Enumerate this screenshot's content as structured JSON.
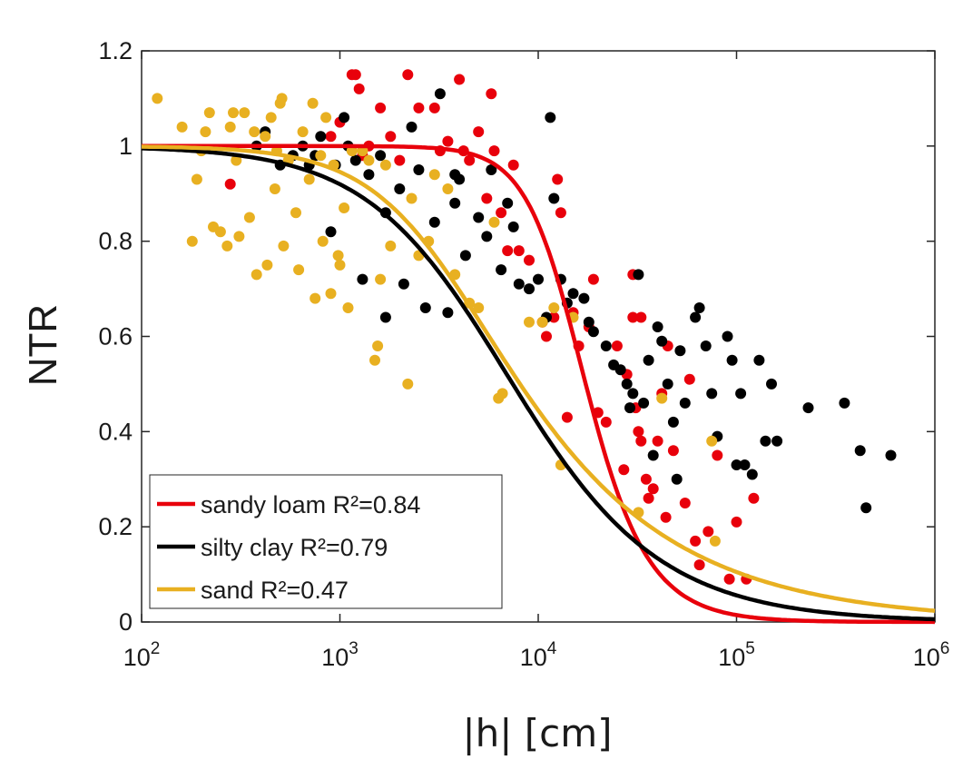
{
  "chart_data": {
    "type": "scatter",
    "xlabel": "|h| [cm]",
    "ylabel": "NTR",
    "xscale": "log",
    "xlim": [
      100,
      1000000
    ],
    "ylim": [
      0,
      1.2
    ],
    "x_ticks": [
      {
        "value": 100,
        "base": "10",
        "exp": "2"
      },
      {
        "value": 1000,
        "base": "10",
        "exp": "3"
      },
      {
        "value": 10000,
        "base": "10",
        "exp": "4"
      },
      {
        "value": 100000,
        "base": "10",
        "exp": "5"
      },
      {
        "value": 1000000,
        "base": "10",
        "exp": "6"
      }
    ],
    "y_ticks": [
      {
        "value": 0,
        "label": "0"
      },
      {
        "value": 0.2,
        "label": "0.2"
      },
      {
        "value": 0.4,
        "label": "0.4"
      },
      {
        "value": 0.6,
        "label": "0.6"
      },
      {
        "value": 0.8,
        "label": "0.8"
      },
      {
        "value": 1.0,
        "label": "1"
      },
      {
        "value": 1.2,
        "label": "1.2"
      }
    ],
    "grid": false,
    "legend_position": "bottom-left",
    "series": [
      {
        "name": "sandy loam R²=0.84",
        "color": "#e8000b",
        "points": [
          [
            280,
            0.92
          ],
          [
            900,
            1.02
          ],
          [
            1000,
            1.05
          ],
          [
            1150,
            1.15
          ],
          [
            1200,
            1.15
          ],
          [
            1250,
            1.12
          ],
          [
            1300,
            0.98
          ],
          [
            1400,
            1.0
          ],
          [
            1600,
            1.08
          ],
          [
            1800,
            1.02
          ],
          [
            2000,
            0.97
          ],
          [
            2200,
            1.15
          ],
          [
            2500,
            1.08
          ],
          [
            3000,
            1.08
          ],
          [
            3200,
            0.99
          ],
          [
            3500,
            1.01
          ],
          [
            4000,
            1.14
          ],
          [
            4200,
            0.99
          ],
          [
            4500,
            0.97
          ],
          [
            5000,
            1.03
          ],
          [
            5500,
            0.89
          ],
          [
            5800,
            1.11
          ],
          [
            6000,
            0.99
          ],
          [
            6500,
            0.86
          ],
          [
            7000,
            0.78
          ],
          [
            7500,
            0.96
          ],
          [
            8000,
            0.78
          ],
          [
            9000,
            0.76
          ],
          [
            10500,
            0.63
          ],
          [
            11000,
            0.6
          ],
          [
            12000,
            0.64
          ],
          [
            12500,
            0.93
          ],
          [
            13000,
            0.86
          ],
          [
            14000,
            0.43
          ],
          [
            15000,
            0.65
          ],
          [
            16000,
            0.58
          ],
          [
            18000,
            0.62
          ],
          [
            19000,
            0.72
          ],
          [
            20000,
            0.44
          ],
          [
            22000,
            0.42
          ],
          [
            25000,
            0.58
          ],
          [
            27000,
            0.32
          ],
          [
            28000,
            0.52
          ],
          [
            30000,
            0.73
          ],
          [
            30000,
            0.64
          ],
          [
            31000,
            0.45
          ],
          [
            32000,
            0.4
          ],
          [
            33000,
            0.38
          ],
          [
            35000,
            0.3
          ],
          [
            36000,
            0.26
          ],
          [
            38000,
            0.28
          ],
          [
            40000,
            0.38
          ],
          [
            42000,
            0.48
          ],
          [
            44000,
            0.22
          ],
          [
            45000,
            0.58
          ],
          [
            48000,
            0.36
          ],
          [
            55000,
            0.25
          ],
          [
            58000,
            0.51
          ],
          [
            62000,
            0.17
          ],
          [
            65000,
            0.12
          ],
          [
            72000,
            0.19
          ],
          [
            80000,
            0.35
          ],
          [
            92000,
            0.09
          ],
          [
            100000,
            0.21
          ],
          [
            112000,
            0.09
          ],
          [
            122000,
            0.26
          ],
          [
            33000,
            0.64
          ]
        ]
      },
      {
        "name": "silty clay R²=0.79",
        "color": "#000000",
        "points": [
          [
            380,
            1.0
          ],
          [
            420,
            1.03
          ],
          [
            500,
            0.96
          ],
          [
            580,
            0.98
          ],
          [
            650,
            1.0
          ],
          [
            700,
            0.96
          ],
          [
            750,
            0.98
          ],
          [
            800,
            1.02
          ],
          [
            900,
            0.82
          ],
          [
            950,
            0.96
          ],
          [
            1050,
            1.06
          ],
          [
            1100,
            1.0
          ],
          [
            1200,
            0.97
          ],
          [
            1300,
            0.72
          ],
          [
            1400,
            0.94
          ],
          [
            1600,
            0.98
          ],
          [
            1700,
            0.64
          ],
          [
            1700,
            0.86
          ],
          [
            2000,
            0.91
          ],
          [
            2100,
            0.71
          ],
          [
            2300,
            1.04
          ],
          [
            2500,
            0.95
          ],
          [
            2700,
            0.66
          ],
          [
            3000,
            0.84
          ],
          [
            3200,
            1.11
          ],
          [
            3500,
            0.65
          ],
          [
            3800,
            0.88
          ],
          [
            4000,
            0.93
          ],
          [
            4300,
            0.77
          ],
          [
            5000,
            0.85
          ],
          [
            5500,
            0.81
          ],
          [
            5800,
            0.95
          ],
          [
            6500,
            0.74
          ],
          [
            7000,
            0.88
          ],
          [
            7500,
            0.83
          ],
          [
            8000,
            0.71
          ],
          [
            9000,
            0.7
          ],
          [
            10000,
            0.72
          ],
          [
            11000,
            0.64
          ],
          [
            11500,
            1.06
          ],
          [
            12000,
            0.89
          ],
          [
            13000,
            0.72
          ],
          [
            14000,
            0.67
          ],
          [
            15000,
            0.69
          ],
          [
            17000,
            0.68
          ],
          [
            18000,
            0.63
          ],
          [
            19000,
            0.61
          ],
          [
            22000,
            0.58
          ],
          [
            24000,
            0.54
          ],
          [
            26000,
            0.53
          ],
          [
            28000,
            0.5
          ],
          [
            29000,
            0.45
          ],
          [
            30000,
            0.48
          ],
          [
            32000,
            0.73
          ],
          [
            34000,
            0.46
          ],
          [
            36000,
            0.55
          ],
          [
            38000,
            0.35
          ],
          [
            40000,
            0.62
          ],
          [
            42000,
            0.59
          ],
          [
            45000,
            0.5
          ],
          [
            48000,
            0.42
          ],
          [
            50000,
            0.3
          ],
          [
            52000,
            0.57
          ],
          [
            55000,
            0.46
          ],
          [
            62000,
            0.64
          ],
          [
            65000,
            0.66
          ],
          [
            70000,
            0.58
          ],
          [
            75000,
            0.48
          ],
          [
            80000,
            0.39
          ],
          [
            90000,
            0.6
          ],
          [
            95000,
            0.55
          ],
          [
            100000,
            0.33
          ],
          [
            105000,
            0.48
          ],
          [
            110000,
            0.33
          ],
          [
            120000,
            0.31
          ],
          [
            130000,
            0.55
          ],
          [
            140000,
            0.38
          ],
          [
            150000,
            0.5
          ],
          [
            160000,
            0.38
          ],
          [
            230000,
            0.45
          ],
          [
            350000,
            0.46
          ],
          [
            420000,
            0.36
          ],
          [
            450000,
            0.24
          ],
          [
            600000,
            0.35
          ],
          [
            3800,
            0.94
          ]
        ]
      },
      {
        "name": "sand R²=0.47",
        "color": "#e8b021",
        "points": [
          [
            120,
            1.1
          ],
          [
            160,
            1.04
          ],
          [
            180,
            0.8
          ],
          [
            190,
            0.93
          ],
          [
            200,
            0.99
          ],
          [
            210,
            1.03
          ],
          [
            220,
            1.07
          ],
          [
            230,
            0.83
          ],
          [
            250,
            0.82
          ],
          [
            270,
            0.79
          ],
          [
            280,
            1.04
          ],
          [
            290,
            1.07
          ],
          [
            300,
            0.97
          ],
          [
            310,
            0.81
          ],
          [
            330,
            1.07
          ],
          [
            350,
            0.85
          ],
          [
            370,
            1.03
          ],
          [
            380,
            0.73
          ],
          [
            420,
            1.02
          ],
          [
            430,
            0.75
          ],
          [
            450,
            1.06
          ],
          [
            470,
            0.91
          ],
          [
            480,
            0.99
          ],
          [
            500,
            1.09
          ],
          [
            510,
            1.1
          ],
          [
            520,
            0.79
          ],
          [
            550,
            0.97
          ],
          [
            600,
            0.86
          ],
          [
            620,
            0.74
          ],
          [
            650,
            1.03
          ],
          [
            700,
            0.93
          ],
          [
            730,
            1.09
          ],
          [
            750,
            0.68
          ],
          [
            800,
            0.98
          ],
          [
            820,
            0.8
          ],
          [
            850,
            1.06
          ],
          [
            900,
            0.69
          ],
          [
            930,
            0.96
          ],
          [
            980,
            0.77
          ],
          [
            1000,
            0.75
          ],
          [
            1050,
            0.87
          ],
          [
            1100,
            0.66
          ],
          [
            1150,
            0.99
          ],
          [
            1300,
            0.99
          ],
          [
            1400,
            0.97
          ],
          [
            1500,
            0.55
          ],
          [
            1550,
            0.58
          ],
          [
            1600,
            0.72
          ],
          [
            1700,
            0.96
          ],
          [
            1800,
            0.79
          ],
          [
            2200,
            0.5
          ],
          [
            2300,
            0.89
          ],
          [
            2500,
            0.77
          ],
          [
            2800,
            0.8
          ],
          [
            3000,
            0.94
          ],
          [
            3500,
            0.91
          ],
          [
            3800,
            0.73
          ],
          [
            4500,
            0.67
          ],
          [
            5000,
            0.66
          ],
          [
            6000,
            0.84
          ],
          [
            6300,
            0.47
          ],
          [
            6600,
            0.48
          ],
          [
            9000,
            0.63
          ],
          [
            10500,
            0.63
          ],
          [
            12000,
            0.66
          ],
          [
            13000,
            0.33
          ],
          [
            15000,
            0.64
          ],
          [
            32000,
            0.23
          ],
          [
            42000,
            0.47
          ],
          [
            75000,
            0.38
          ],
          [
            78000,
            0.17
          ]
        ]
      }
    ],
    "fit_curves": [
      {
        "name": "sandy loam R²=0.84",
        "color": "#e8000b",
        "model": "van-genuchten",
        "alpha": 6.85e-05,
        "n": 3.2,
        "m": 0.6875
      },
      {
        "name": "silty clay R²=0.79",
        "color": "#000000",
        "model": "van-genuchten",
        "alpha": 0.000175,
        "n": 1.26,
        "m": 0.7937
      },
      {
        "name": "sand R²=0.47",
        "color": "#e8b021",
        "model": "van-genuchten",
        "alpha": 0.00032,
        "n": 1.65,
        "m": 0.3939
      }
    ]
  }
}
